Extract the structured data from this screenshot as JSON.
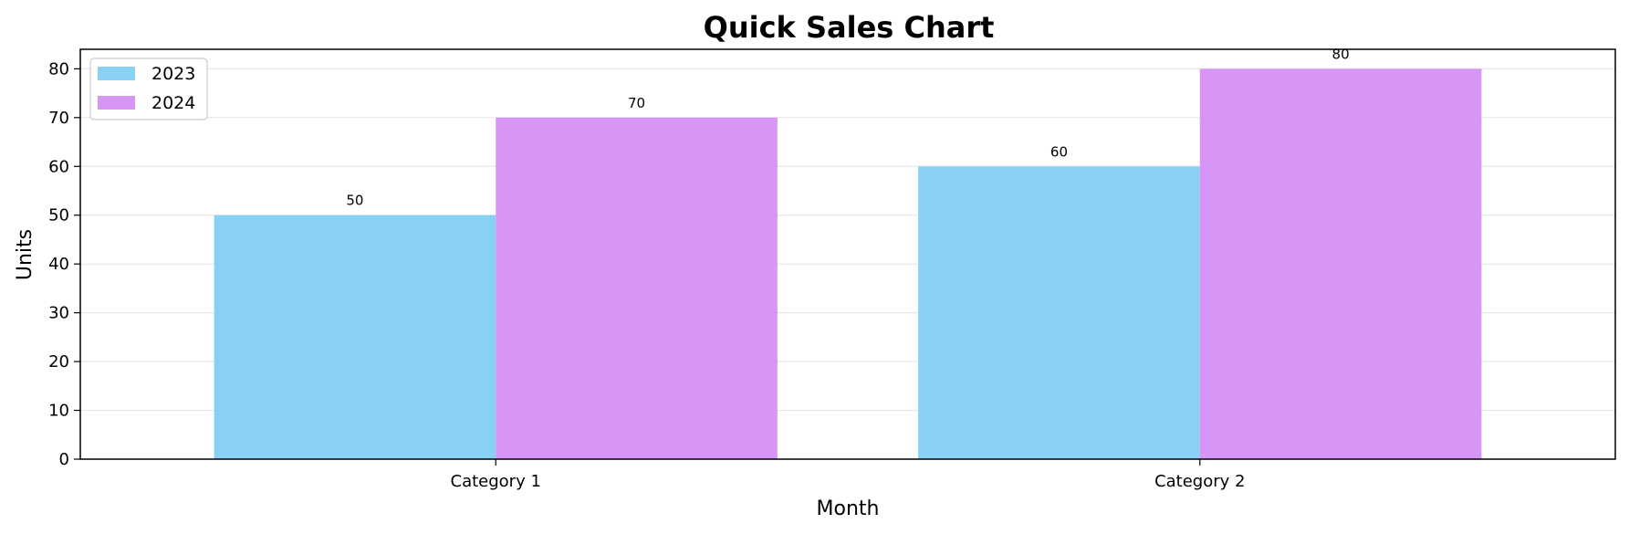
{
  "chart_data": {
    "type": "bar",
    "title": "Quick Sales Chart",
    "xlabel": "Month",
    "ylabel": "Units",
    "categories": [
      "Category 1",
      "Category 2"
    ],
    "series": [
      {
        "name": "2023",
        "values": [
          50,
          60
        ],
        "color": "#89d1f2"
      },
      {
        "name": "2024",
        "values": [
          70,
          80
        ],
        "color": "#d796f5"
      }
    ],
    "ylim": [
      0,
      84
    ],
    "yticks": [
      0,
      10,
      20,
      30,
      40,
      50,
      60,
      70,
      80
    ],
    "grid": "y",
    "legend_position": "top-left"
  }
}
